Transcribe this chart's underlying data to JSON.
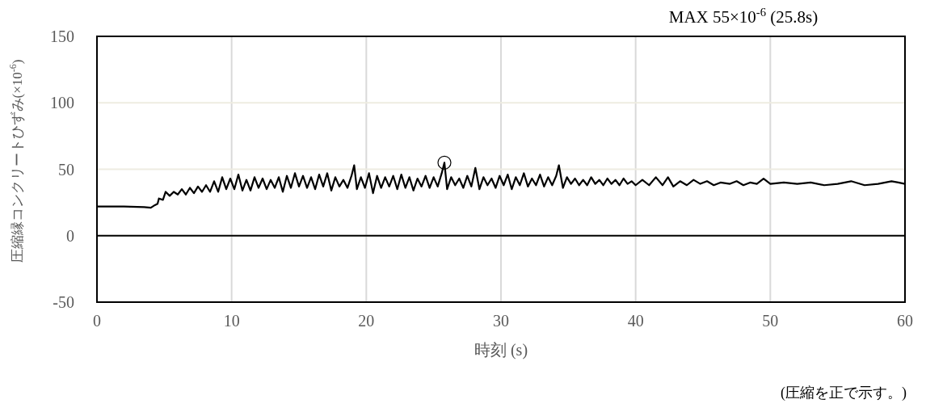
{
  "chart_data": {
    "type": "line",
    "xlabel": "時刻 (s)",
    "ylabel": "圧縮縁コンクリートひずみ(×10$^{-6}$)",
    "xlim": [
      0,
      60
    ],
    "xticks": [
      0,
      10,
      20,
      30,
      40,
      50,
      60
    ],
    "ylim": [
      -50,
      150
    ],
    "yticks": [
      -50,
      0,
      50,
      100,
      150
    ],
    "grid": true,
    "marker": "none",
    "line_style": "solid",
    "ref_lines": [
      {
        "axis": "y",
        "value": 0,
        "color": "#000000"
      }
    ],
    "annotations": [
      "MAX  55×10$^{-6}$ (25.8s)",
      "(圧縮を正で示す。)"
    ],
    "series": [
      {
        "type": "scatter",
        "marker": "circle",
        "color": "#000000",
        "x": [
          25.8
        ],
        "values": [
          55
        ]
      },
      {
        "color": "#000000",
        "x": [
          0,
          2,
          3.5,
          4,
          4.3,
          4.5,
          4.6,
          4.9,
          5.1,
          5.4,
          5.7,
          6,
          6.3,
          6.6,
          6.9,
          7.2,
          7.5,
          7.8,
          8.1,
          8.4,
          8.7,
          9,
          9.3,
          9.6,
          9.9,
          10.2,
          10.5,
          10.8,
          11.1,
          11.4,
          11.7,
          12,
          12.3,
          12.6,
          12.9,
          13.2,
          13.5,
          13.8,
          14.1,
          14.4,
          14.7,
          15,
          15.3,
          15.6,
          15.9,
          16.2,
          16.5,
          16.8,
          17.1,
          17.4,
          17.7,
          18,
          18.3,
          18.6,
          18.9,
          19.1,
          19.3,
          19.6,
          19.9,
          20.2,
          20.5,
          20.8,
          21.1,
          21.4,
          21.7,
          22,
          22.3,
          22.6,
          22.9,
          23.2,
          23.5,
          23.8,
          24.1,
          24.4,
          24.7,
          25,
          25.3,
          25.6,
          25.8,
          26,
          26.3,
          26.6,
          26.9,
          27.2,
          27.5,
          27.8,
          28.1,
          28.4,
          28.7,
          29,
          29.3,
          29.6,
          29.9,
          30.2,
          30.5,
          30.8,
          31.1,
          31.4,
          31.7,
          32,
          32.3,
          32.6,
          32.9,
          33.2,
          33.5,
          33.8,
          34.1,
          34.3,
          34.6,
          34.9,
          35.2,
          35.5,
          35.8,
          36.1,
          36.4,
          36.7,
          37,
          37.3,
          37.6,
          37.9,
          38.2,
          38.5,
          38.8,
          39.1,
          39.4,
          39.7,
          40,
          40.5,
          41,
          41.5,
          42,
          42.4,
          42.8,
          43.3,
          43.8,
          44.3,
          44.8,
          45.3,
          45.8,
          46.3,
          47,
          47.5,
          48,
          48.5,
          49,
          49.5,
          50,
          51,
          52,
          53,
          54,
          55,
          56,
          57,
          58,
          59,
          59.5,
          60
        ],
        "values": [
          22,
          22,
          21.5,
          21,
          23,
          24,
          28,
          27,
          33,
          30,
          33,
          31,
          35,
          31,
          36,
          32,
          37,
          33,
          38,
          33,
          41,
          33,
          44,
          35,
          43,
          35,
          46,
          34,
          42,
          34,
          44,
          36,
          43,
          35,
          42,
          36,
          44,
          33,
          45,
          36,
          47,
          37,
          45,
          36,
          44,
          35,
          46,
          37,
          47,
          34,
          44,
          37,
          42,
          36,
          45,
          53,
          35,
          44,
          36,
          47,
          32,
          45,
          36,
          44,
          37,
          45,
          35,
          46,
          36,
          44,
          34,
          43,
          37,
          45,
          36,
          44,
          37,
          47,
          55,
          35,
          44,
          38,
          43,
          36,
          45,
          37,
          51,
          35,
          44,
          38,
          43,
          36,
          45,
          38,
          46,
          35,
          44,
          38,
          47,
          37,
          43,
          38,
          46,
          37,
          44,
          38,
          45,
          53,
          36,
          44,
          39,
          43,
          38,
          42,
          38,
          44,
          39,
          42,
          38,
          43,
          39,
          42,
          38,
          43,
          39,
          41,
          38,
          42,
          38,
          44,
          38,
          44,
          37,
          41,
          38,
          42,
          39,
          41,
          38,
          40,
          39,
          41,
          38,
          40,
          39,
          43,
          39,
          40,
          39,
          40,
          38,
          39,
          41,
          38,
          39,
          41,
          40,
          39
        ]
      }
    ]
  }
}
